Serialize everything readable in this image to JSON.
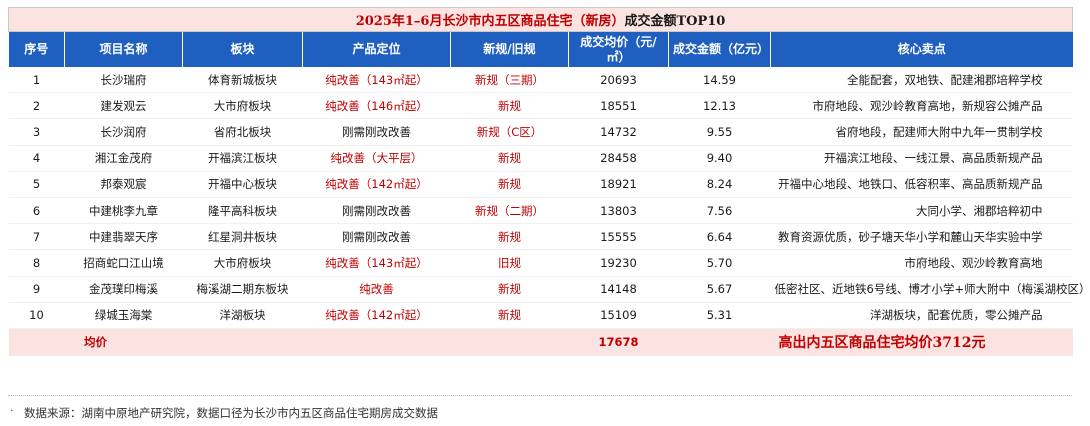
{
  "title": {
    "part1": "2025年1–6月长沙市内五区",
    "part2": "商品住宅（新房）",
    "part3": "成交金额TOP10"
  },
  "headers": [
    "序号",
    "项目名称",
    "板块",
    "产品定位",
    "新规/旧规",
    "成交均价（元/㎡）",
    "成交金额（亿元）",
    "核心卖点"
  ],
  "rows": [
    {
      "no": "1",
      "name": "长沙瑞府",
      "block": "体育新城板块",
      "position": "纯改善（143㎡起）",
      "rule": "新规（三期）",
      "price": "20693",
      "amount": "14.59",
      "selling": "全能配套，双地铁、配建湘郡培粹学校"
    },
    {
      "no": "2",
      "name": "建发观云",
      "block": "大市府板块",
      "position": "纯改善（146㎡起）",
      "rule": "新规",
      "price": "18551",
      "amount": "12.13",
      "selling": "市府地段、观沙岭教育高地，新规容公摊产品"
    },
    {
      "no": "3",
      "name": "长沙润府",
      "block": "省府北板块",
      "position": "刚需刚改改善",
      "rule": "新规（C区）",
      "price": "14732",
      "amount": "9.55",
      "selling": "省府地段，配建师大附中九年一贯制学校"
    },
    {
      "no": "4",
      "name": "湘江金茂府",
      "block": "开福滨江板块",
      "position": "纯改善（大平层）",
      "rule": "新规",
      "price": "28458",
      "amount": "9.40",
      "selling": "开福滨江地段、一线江景、高品质新规产品"
    },
    {
      "no": "5",
      "name": "邦泰观宸",
      "block": "开福中心板块",
      "position": "纯改善（142㎡起）",
      "rule": "新规",
      "price": "18921",
      "amount": "8.24",
      "selling": "开福中心地段、地铁口、低容积率、高品质新规产品"
    },
    {
      "no": "6",
      "name": "中建桃李九章",
      "block": "隆平高科板块",
      "position": "刚需刚改改善",
      "rule": "新规（二期）",
      "price": "13803",
      "amount": "7.56",
      "selling": "大同小学、湘郡培粹初中"
    },
    {
      "no": "7",
      "name": "中建翡翠天序",
      "block": "红星洞井板块",
      "position": "刚需刚改改善",
      "rule": "新规",
      "price": "15555",
      "amount": "6.64",
      "selling": "教育资源优质，砂子塘天华小学和麓山天华实验中学"
    },
    {
      "no": "8",
      "name": "招商蛇口江山境",
      "block": "大市府板块",
      "position": "纯改善（143㎡起）",
      "rule": "旧规",
      "price": "19230",
      "amount": "5.70",
      "selling": "市府地段、观沙岭教育高地"
    },
    {
      "no": "9",
      "name": "金茂璞印梅溪",
      "block": "梅溪湖二期东板块",
      "position": "纯改善",
      "rule": "新规",
      "price": "14148",
      "amount": "5.67",
      "selling": "低密社区、近地铁6号线、博才小学+师大附中（梅溪湖校区）"
    },
    {
      "no": "10",
      "name": "绿城玉海棠",
      "block": "洋湖板块",
      "position": "纯改善（142㎡起）",
      "rule": "新规",
      "price": "15109",
      "amount": "5.31",
      "selling": "洋湖板块，配套优质，零公摊产品"
    }
  ],
  "average": {
    "label": "均价",
    "price": "17678",
    "note": "高出内五区商品住宅均价3712元"
  },
  "source_marker": "·",
  "source": "数据来源：湖南中原地产研究院，数据口径为长沙市内五区商品住宅期房成交数据"
}
